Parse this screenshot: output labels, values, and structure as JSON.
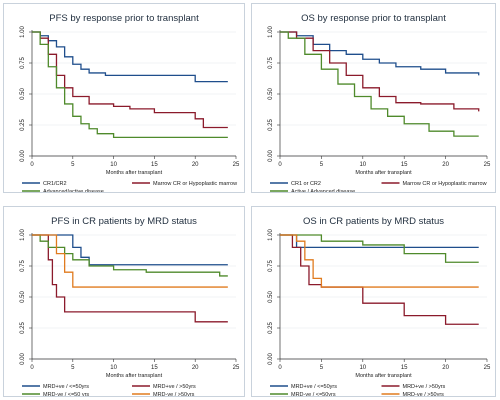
{
  "chart_data": [
    {
      "type": "line",
      "title": "PFS by response prior to transplant",
      "xlabel": "Months after transplant",
      "ylabel": "",
      "xlim": [
        0,
        25
      ],
      "ylim": [
        0,
        1
      ],
      "xticks": [
        "0",
        "5",
        "10",
        "15",
        "20",
        "25"
      ],
      "yticks": [
        "0.00",
        "0.25",
        "0.50",
        "0.75",
        "1.00"
      ],
      "grid": true,
      "legend_position": "bottom",
      "series": [
        {
          "name": "CR1/CR2",
          "color": "#1f4e8c",
          "x": [
            0,
            1,
            2,
            3,
            4,
            5,
            6,
            7,
            9,
            12,
            20,
            24
          ],
          "y": [
            1.0,
            0.97,
            0.93,
            0.88,
            0.8,
            0.74,
            0.7,
            0.67,
            0.65,
            0.65,
            0.6,
            0.6
          ]
        },
        {
          "name": "Marrow CR or Hypoplastic marrow",
          "color": "#8b1a2b",
          "x": [
            0,
            1,
            2,
            3,
            4,
            5,
            7,
            10,
            12,
            15,
            20,
            21,
            24
          ],
          "y": [
            1.0,
            0.95,
            0.82,
            0.65,
            0.55,
            0.48,
            0.42,
            0.4,
            0.38,
            0.35,
            0.3,
            0.23,
            0.23
          ]
        },
        {
          "name": "Advanced/active disease",
          "color": "#4f8a2b",
          "x": [
            0,
            1,
            2,
            3,
            4,
            5,
            6,
            7,
            8,
            10,
            24
          ],
          "y": [
            1.0,
            0.9,
            0.72,
            0.55,
            0.42,
            0.32,
            0.26,
            0.22,
            0.18,
            0.15,
            0.15
          ]
        }
      ]
    },
    {
      "type": "line",
      "title": "OS by response prior to transplant",
      "xlabel": "Months after transplant",
      "ylabel": "",
      "xlim": [
        0,
        25
      ],
      "ylim": [
        0,
        1
      ],
      "xticks": [
        "0",
        "5",
        "10",
        "15",
        "20",
        "25"
      ],
      "yticks": [
        "0.00",
        "0.25",
        "0.50",
        "0.75",
        "1.00"
      ],
      "grid": true,
      "legend_position": "bottom",
      "series": [
        {
          "name": "CR1 or CR2",
          "color": "#1f4e8c",
          "x": [
            0,
            2,
            4,
            6,
            8,
            10,
            12,
            14,
            17,
            20,
            24
          ],
          "y": [
            1.0,
            0.97,
            0.9,
            0.85,
            0.82,
            0.78,
            0.75,
            0.72,
            0.7,
            0.67,
            0.65
          ]
        },
        {
          "name": "Marrow CR or Hypoplastic marrow",
          "color": "#8b1a2b",
          "x": [
            0,
            2,
            4,
            6,
            8,
            10,
            12,
            14,
            17,
            21,
            24
          ],
          "y": [
            1.0,
            0.95,
            0.85,
            0.75,
            0.65,
            0.55,
            0.48,
            0.43,
            0.42,
            0.38,
            0.36
          ]
        },
        {
          "name": "Active / Advanced disease",
          "color": "#4f8a2b",
          "x": [
            0,
            1,
            3,
            5,
            7,
            9,
            11,
            13,
            15,
            18,
            21,
            24
          ],
          "y": [
            1.0,
            0.95,
            0.82,
            0.7,
            0.58,
            0.48,
            0.38,
            0.32,
            0.26,
            0.2,
            0.16,
            0.16
          ]
        }
      ]
    },
    {
      "type": "line",
      "title": "PFS in CR patients by MRD status",
      "xlabel": "Months after transplant",
      "ylabel": "",
      "xlim": [
        0,
        25
      ],
      "ylim": [
        0,
        1
      ],
      "xticks": [
        "0",
        "5",
        "10",
        "15",
        "20",
        "25"
      ],
      "yticks": [
        "0.00",
        "0.25",
        "0.50",
        "0.75",
        "1.00"
      ],
      "grid": true,
      "legend_position": "bottom",
      "series": [
        {
          "name": "MRD+ve / <=50yrs",
          "color": "#1f4e8c",
          "x": [
            0,
            3,
            5,
            6,
            7,
            9,
            24
          ],
          "y": [
            1.0,
            1.0,
            0.9,
            0.82,
            0.76,
            0.76,
            0.76
          ]
        },
        {
          "name": "MRD+ve / >50yrs",
          "color": "#8b1a2b",
          "x": [
            0,
            2,
            2.5,
            3,
            4,
            20,
            24
          ],
          "y": [
            1.0,
            0.8,
            0.6,
            0.5,
            0.38,
            0.3,
            0.3
          ]
        },
        {
          "name": "MRD-ve / <=50 yrs",
          "color": "#4f8a2b",
          "x": [
            0,
            1,
            2,
            4,
            5,
            7,
            10,
            14,
            23,
            24
          ],
          "y": [
            1.0,
            0.95,
            0.9,
            0.85,
            0.8,
            0.75,
            0.72,
            0.7,
            0.67,
            0.67
          ]
        },
        {
          "name": "MRD-ve / >50yrs",
          "color": "#e07b1f",
          "x": [
            0,
            2,
            3,
            4,
            5,
            24
          ],
          "y": [
            1.0,
            1.0,
            0.85,
            0.7,
            0.58,
            0.58
          ]
        }
      ]
    },
    {
      "type": "line",
      "title": "OS in CR patients by MRD status",
      "xlabel": "Months after transplant",
      "ylabel": "",
      "xlim": [
        0,
        25
      ],
      "ylim": [
        0,
        1
      ],
      "xticks": [
        "0",
        "5",
        "10",
        "15",
        "20",
        "25"
      ],
      "yticks": [
        "0.00",
        "0.25",
        "0.50",
        "0.75",
        "1.00"
      ],
      "grid": true,
      "legend_position": "bottom",
      "series": [
        {
          "name": "MRD+ve / <=50yrs",
          "color": "#1f4e8c",
          "x": [
            0,
            2,
            24
          ],
          "y": [
            1.0,
            0.9,
            0.9
          ]
        },
        {
          "name": "MRD+ve / >50yrs",
          "color": "#8b1a2b",
          "x": [
            0,
            1.5,
            2.5,
            3.5,
            5,
            10,
            15,
            20,
            24
          ],
          "y": [
            1.0,
            0.9,
            0.75,
            0.6,
            0.58,
            0.45,
            0.35,
            0.28,
            0.28
          ]
        },
        {
          "name": "MRD-ve / <=50yrs",
          "color": "#4f8a2b",
          "x": [
            0,
            5,
            10,
            15,
            20,
            24
          ],
          "y": [
            1.0,
            0.95,
            0.92,
            0.85,
            0.78,
            0.78
          ]
        },
        {
          "name": "MRD-ve / >50yrs",
          "color": "#e07b1f",
          "x": [
            0,
            2,
            3,
            4,
            5,
            24
          ],
          "y": [
            1.0,
            0.95,
            0.8,
            0.65,
            0.58,
            0.58
          ]
        }
      ]
    }
  ]
}
